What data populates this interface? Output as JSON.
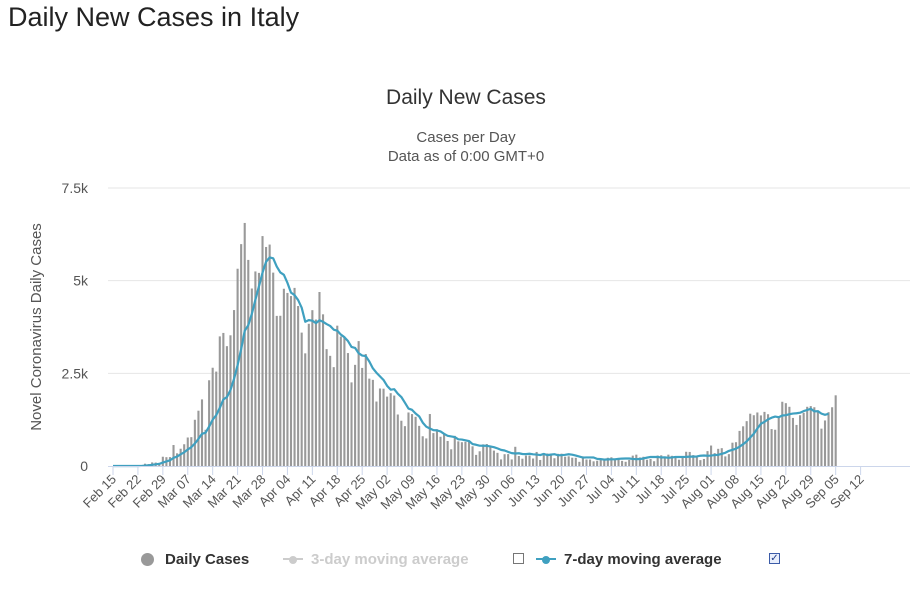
{
  "page": {
    "heading": "Daily New Cases in Italy"
  },
  "chart_data": {
    "type": "bar",
    "title": "Daily New Cases",
    "subtitle_line1": "Cases per Day",
    "subtitle_line2": "Data as of 0:00 GMT+0",
    "xlabel": "",
    "ylabel": "Novel Coronavirus Daily Cases",
    "ylim": [
      0,
      7500
    ],
    "yticks": [
      {
        "value": 0,
        "label": "0"
      },
      {
        "value": 2500,
        "label": "2.5k"
      },
      {
        "value": 5000,
        "label": "5k"
      },
      {
        "value": 7500,
        "label": "7.5k"
      }
    ],
    "x_start_date": "Feb 15",
    "x_tick_labels": [
      "Feb 15",
      "Feb 22",
      "Feb 29",
      "Mar 07",
      "Mar 14",
      "Mar 21",
      "Mar 28",
      "Apr 04",
      "Apr 11",
      "Apr 18",
      "Apr 25",
      "May 02",
      "May 09",
      "May 16",
      "May 23",
      "May 30",
      "Jun 06",
      "Jun 13",
      "Jun 20",
      "Jun 27",
      "Jul 04",
      "Jul 11",
      "Jul 18",
      "Jul 25",
      "Aug 01",
      "Aug 08",
      "Aug 15",
      "Aug 22",
      "Aug 29",
      "Sep 05",
      "Sep 12"
    ],
    "x_tick_interval_days": 7,
    "grid": true,
    "colors": {
      "bars": "#999999",
      "avg7": "#3fa0c0",
      "avg3_disabled": "#cccccc",
      "grid": "#e6e6e6",
      "axis": "#ccd6eb"
    },
    "series": [
      {
        "name": "Daily Cases",
        "type": "bar",
        "values": [
          0,
          0,
          0,
          0,
          0,
          0,
          0,
          0,
          14,
          62,
          53,
          97,
          93,
          78,
          250,
          238,
          240,
          566,
          342,
          466,
          587,
          769,
          778,
          1247,
          1492,
          1797,
          977,
          2313,
          2651,
          2547,
          3497,
          3590,
          3233,
          3526,
          4207,
          5322,
          5986,
          6557,
          5560,
          4789,
          5249,
          5210,
          6203,
          5909,
          5974,
          5217,
          4050,
          4053,
          4782,
          4668,
          4585,
          4805,
          4316,
          3599,
          3039,
          3836,
          4204,
          3951,
          4694,
          4092,
          3153,
          2972,
          2667,
          3786,
          3493,
          3491,
          3047,
          2256,
          2729,
          3370,
          2646,
          3021,
          2357,
          2324,
          1739,
          2091,
          2086,
          1872,
          1965,
          1900,
          1389,
          1221,
          1075,
          1444,
          1401,
          1327,
          1083,
          802,
          744,
          1402,
          888,
          992,
          789,
          875,
          675,
          451,
          813,
          665,
          642,
          652,
          669,
          531,
          300,
          397,
          584,
          593,
          516,
          416,
          355,
          178,
          318,
          321,
          177,
          518,
          270,
          197,
          280,
          283,
          202,
          379,
          163,
          346,
          338,
          331,
          210,
          329,
          333,
          251,
          262,
          224,
          221,
          113,
          259,
          175,
          174,
          126,
          142,
          187,
          201,
          223,
          235,
          192,
          208,
          138,
          114,
          163,
          280,
          306,
          230,
          249,
          169,
          190,
          129,
          282,
          289,
          212,
          306,
          275,
          255,
          170,
          234,
          384,
          379,
          295,
          238,
          159,
          190,
          402,
          552,
          347,
          463,
          481,
          259,
          320,
          629,
          642,
          947,
          1071,
          1210,
          1411,
          1370,
          1444,
          1365,
          1460,
          1397,
          996,
          978,
          1326,
          1733,
          1695,
          1597,
          1297,
          1108,
          1370,
          1434,
          1597,
          1616,
          1585,
          1501,
          1008,
          1229,
          1452,
          1585,
          1907
        ]
      },
      {
        "name": "3-day moving average",
        "type": "line",
        "visible": false
      },
      {
        "name": "7-day moving average",
        "type": "line",
        "visible": true,
        "values": [
          0,
          0,
          0,
          0,
          0,
          0,
          0,
          0,
          2,
          11,
          18,
          32,
          45,
          57,
          92,
          124,
          153,
          220,
          255,
          316,
          370,
          445,
          508,
          607,
          731,
          868,
          899,
          1063,
          1248,
          1373,
          1567,
          1797,
          1859,
          2049,
          2352,
          2720,
          3153,
          3647,
          3797,
          4106,
          4484,
          4847,
          5215,
          5510,
          5627,
          5602,
          5380,
          5221,
          5157,
          4942,
          4677,
          4611,
          4477,
          4271,
          3891,
          3936,
          3920,
          3854,
          3932,
          3891,
          3829,
          3779,
          3679,
          3652,
          3546,
          3475,
          3372,
          3212,
          3186,
          3043,
          2980,
          2965,
          2819,
          2635,
          2516,
          2417,
          2320,
          2163,
          2059,
          2072,
          1951,
          1861,
          1708,
          1549,
          1515,
          1415,
          1340,
          1171,
          1061,
          1012,
          967,
          961,
          932,
          868,
          815,
          798,
          781,
          720,
          713,
          693,
          674,
          591,
          573,
          548,
          546,
          545,
          527,
          507,
          475,
          435,
          418,
          380,
          347,
          337,
          344,
          324,
          321,
          330,
          315,
          309,
          294,
          325,
          293,
          307,
          318,
          290,
          292,
          301,
          317,
          305,
          283,
          256,
          228,
          231,
          231,
          230,
          192,
          186,
          173,
          178,
          180,
          180,
          192,
          200,
          203,
          203,
          191,
          184,
          188,
          203,
          226,
          245,
          243,
          245,
          230,
          234,
          221,
          231,
          244,
          242,
          245,
          247,
          252,
          253,
          257,
          277,
          283,
          276,
          282,
          296,
          301,
          330,
          357,
          407,
          436,
          468,
          521,
          588,
          663,
          770,
          869,
          1012,
          1140,
          1191,
          1258,
          1303,
          1334,
          1316,
          1362,
          1371,
          1397,
          1415,
          1423,
          1438,
          1481,
          1511,
          1543,
          1473,
          1479,
          1413,
          1382,
          1407
        ]
      }
    ],
    "legend": {
      "daily_label": "Daily Cases",
      "avg3_label": "3-day moving average",
      "avg7_label": "7-day moving average",
      "avg3_checked": false,
      "avg7_checked": true,
      "check_mark": "✓"
    }
  }
}
